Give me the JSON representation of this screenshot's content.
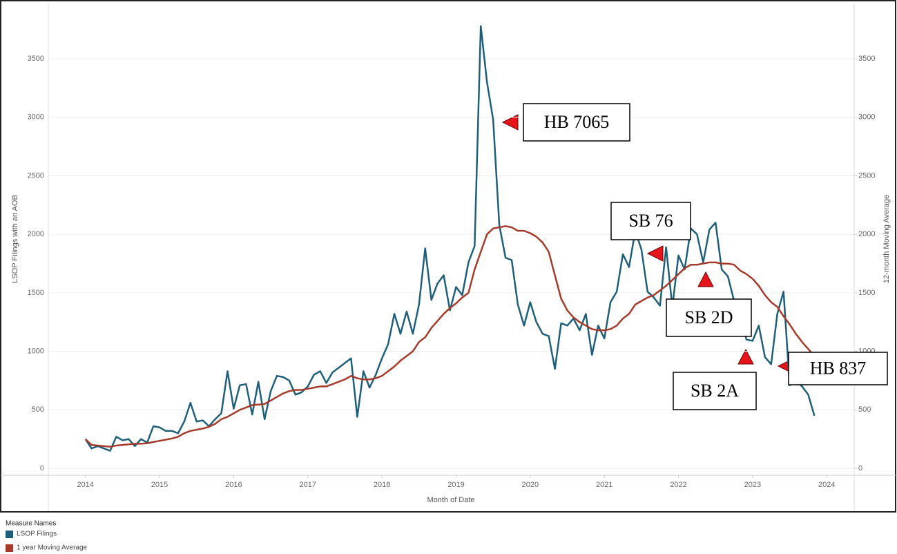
{
  "chart_data": {
    "type": "line",
    "y_label": "LSOP Filings with an AOB",
    "y2_label": "12-month Moving Average",
    "x_label": "Month of Date",
    "legend_title": "Measure Names",
    "x": [
      2014,
      2014.083,
      2014.167,
      2014.25,
      2014.333,
      2014.417,
      2014.5,
      2014.583,
      2014.667,
      2014.75,
      2014.833,
      2014.917,
      2015,
      2015.083,
      2015.167,
      2015.25,
      2015.333,
      2015.417,
      2015.5,
      2015.583,
      2015.667,
      2015.75,
      2015.833,
      2015.917,
      2016,
      2016.083,
      2016.167,
      2016.25,
      2016.333,
      2016.417,
      2016.5,
      2016.583,
      2016.667,
      2016.75,
      2016.833,
      2016.917,
      2017,
      2017.083,
      2017.167,
      2017.25,
      2017.333,
      2017.417,
      2017.5,
      2017.583,
      2017.667,
      2017.75,
      2017.833,
      2017.917,
      2018,
      2018.083,
      2018.167,
      2018.25,
      2018.333,
      2018.417,
      2018.5,
      2018.583,
      2018.667,
      2018.75,
      2018.833,
      2018.917,
      2019,
      2019.083,
      2019.167,
      2019.25,
      2019.333,
      2019.417,
      2019.5,
      2019.583,
      2019.667,
      2019.75,
      2019.833,
      2019.917,
      2020,
      2020.083,
      2020.167,
      2020.25,
      2020.333,
      2020.417,
      2020.5,
      2020.583,
      2020.667,
      2020.75,
      2020.833,
      2020.917,
      2021,
      2021.083,
      2021.167,
      2021.25,
      2021.333,
      2021.417,
      2021.5,
      2021.583,
      2021.667,
      2021.75,
      2021.833,
      2021.917,
      2022,
      2022.083,
      2022.167,
      2022.25,
      2022.333,
      2022.417,
      2022.5,
      2022.583,
      2022.667,
      2022.75,
      2022.833,
      2022.917,
      2023,
      2023.083,
      2023.167,
      2023.25,
      2023.333,
      2023.417,
      2023.5,
      2023.583,
      2023.667,
      2023.75,
      2023.833
    ],
    "series": [
      {
        "name": "LSOP Filings",
        "color": "#1f5f7a",
        "values": [
          250,
          170,
          190,
          170,
          150,
          270,
          240,
          250,
          190,
          250,
          220,
          360,
          350,
          320,
          320,
          300,
          400,
          560,
          400,
          410,
          360,
          420,
          470,
          830,
          510,
          710,
          720,
          460,
          740,
          420,
          660,
          790,
          780,
          750,
          630,
          650,
          700,
          800,
          830,
          730,
          820,
          860,
          900,
          940,
          440,
          830,
          690,
          800,
          940,
          1060,
          1320,
          1150,
          1340,
          1150,
          1400,
          1880,
          1440,
          1580,
          1650,
          1350,
          1550,
          1480,
          1760,
          1900,
          3780,
          3300,
          2980,
          2080,
          1800,
          1780,
          1400,
          1220,
          1420,
          1250,
          1150,
          1130,
          850,
          1240,
          1220,
          1280,
          1180,
          1320,
          970,
          1220,
          1110,
          1420,
          1510,
          1830,
          1720,
          2030,
          1870,
          1510,
          1460,
          1390,
          1890,
          1380,
          1820,
          1700,
          2050,
          2000,
          1760,
          2040,
          2100,
          1700,
          1640,
          1430,
          1300,
          1100,
          1090,
          1220,
          950,
          890,
          1320,
          1510,
          710,
          750,
          700,
          630,
          450
        ]
      },
      {
        "name": "1 year Moving Average",
        "color": "#a63a2a",
        "axis": "y2",
        "values": [
          250,
          200,
          195,
          190,
          185,
          195,
          200,
          205,
          210,
          210,
          215,
          225,
          235,
          245,
          255,
          270,
          300,
          320,
          330,
          340,
          355,
          380,
          420,
          440,
          470,
          500,
          520,
          540,
          545,
          550,
          580,
          610,
          640,
          660,
          670,
          670,
          680,
          690,
          700,
          700,
          720,
          740,
          760,
          790,
          770,
          760,
          760,
          770,
          790,
          830,
          870,
          920,
          960,
          1000,
          1080,
          1120,
          1200,
          1260,
          1320,
          1370,
          1410,
          1460,
          1500,
          1700,
          1850,
          2000,
          2050,
          2060,
          2070,
          2060,
          2030,
          2030,
          2010,
          1980,
          1930,
          1850,
          1650,
          1450,
          1350,
          1290,
          1250,
          1220,
          1190,
          1180,
          1180,
          1190,
          1220,
          1280,
          1320,
          1400,
          1430,
          1460,
          1480,
          1520,
          1560,
          1610,
          1660,
          1710,
          1740,
          1740,
          1750,
          1760,
          1760,
          1750,
          1750,
          1740,
          1690,
          1660,
          1620,
          1560,
          1480,
          1420,
          1380,
          1300,
          1230,
          1150,
          1080,
          1020,
          960
        ]
      }
    ],
    "xlim": [
      2013.5,
      2024.37
    ],
    "xticks": [
      2014,
      2015,
      2016,
      2017,
      2018,
      2019,
      2020,
      2021,
      2022,
      2023,
      2024
    ],
    "ylim": [
      -59,
      3973
    ],
    "yticks": [
      0,
      500,
      1000,
      1500,
      2000,
      2500,
      3000,
      3500
    ],
    "y2lim": [
      -59,
      3973
    ],
    "y2ticks": [
      0,
      500,
      1000,
      1500,
      2000,
      2500,
      3000,
      3500
    ],
    "grid": true,
    "annotations": [
      {
        "text": "HB 7065"
      },
      {
        "text": "SB 76"
      },
      {
        "text": "SB 2D"
      },
      {
        "text": "SB 2A"
      },
      {
        "text": "HB 837"
      }
    ]
  }
}
